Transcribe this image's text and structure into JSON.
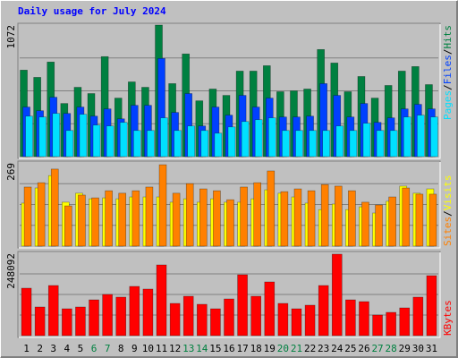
{
  "chart_data": [
    {
      "type": "bar",
      "title": "Daily usage for July 2024",
      "ylim": [
        0,
        1072
      ],
      "yticks": [
        1072
      ],
      "grid": true,
      "legend_separator": "/",
      "series": [
        {
          "name": "Hits",
          "color": "#008040",
          "values": [
            705,
            646,
            771,
            433,
            565,
            514,
            815,
            477,
            609,
            565,
            1072,
            595,
            837,
            455,
            551,
            499,
            697,
            697,
            741,
            529,
            536,
            551,
            873,
            763,
            529,
            653,
            477,
            580,
            697,
            734,
            587
          ]
        },
        {
          "name": "Files",
          "color": "#0040ff",
          "values": [
            404,
            374,
            484,
            352,
            404,
            330,
            389,
            308,
            418,
            418,
            800,
            360,
            514,
            250,
            404,
            338,
            499,
            404,
            477,
            323,
            323,
            330,
            595,
            499,
            323,
            433,
            279,
            316,
            389,
            426,
            389
          ]
        },
        {
          "name": "Pages",
          "color": "#00e0ff",
          "values": [
            330,
            323,
            352,
            213,
            345,
            257,
            250,
            279,
            213,
            213,
            316,
            213,
            250,
            213,
            191,
            242,
            286,
            301,
            316,
            213,
            213,
            213,
            213,
            250,
            213,
            272,
            213,
            213,
            323,
            338,
            323
          ]
        }
      ]
    },
    {
      "type": "bar",
      "ylim": [
        0,
        269
      ],
      "yticks": [
        269
      ],
      "grid": true,
      "legend_separator": "/",
      "series": [
        {
          "name": "Visits",
          "color": "#ffff00",
          "values": [
            139,
            188,
            228,
            142,
            171,
            153,
            156,
            153,
            159,
            159,
            159,
            142,
            153,
            142,
            153,
            142,
            142,
            153,
            182,
            171,
            159,
            139,
            118,
            136,
            118,
            127,
            107,
            145,
            194,
            171,
            185
          ]
        },
        {
          "name": "Sites",
          "color": "#ff8000",
          "values": [
            191,
            205,
            249,
            130,
            165,
            156,
            179,
            171,
            179,
            191,
            263,
            171,
            202,
            185,
            179,
            150,
            191,
            205,
            243,
            176,
            185,
            179,
            199,
            194,
            179,
            142,
            133,
            159,
            188,
            168,
            168
          ]
        }
      ]
    },
    {
      "type": "bar",
      "ylim": [
        0,
        248092
      ],
      "yticks": [
        248092
      ],
      "grid": true,
      "categories": [
        1,
        2,
        3,
        4,
        5,
        6,
        7,
        8,
        9,
        10,
        11,
        12,
        13,
        14,
        15,
        16,
        17,
        18,
        19,
        20,
        21,
        22,
        23,
        24,
        25,
        26,
        27,
        28,
        29,
        30,
        31
      ],
      "highlight_categories": [
        6,
        7,
        13,
        14,
        20,
        21,
        27,
        28
      ],
      "highlight_color": "#008040",
      "series": [
        {
          "name": "KBytes",
          "color": "#ff0000",
          "values": [
            142941,
            86304,
            151032,
            80910,
            86304,
            107880,
            124062,
            115971,
            148335,
            140244,
            213063,
            97092,
            118668,
            94395,
            80910,
            110577,
            183396,
            118668,
            161820,
            97092,
            80910,
            91698,
            151032,
            245427,
            107880,
            102486,
            62031,
            70122,
            83607,
            115971,
            180699
          ]
        }
      ]
    }
  ]
}
